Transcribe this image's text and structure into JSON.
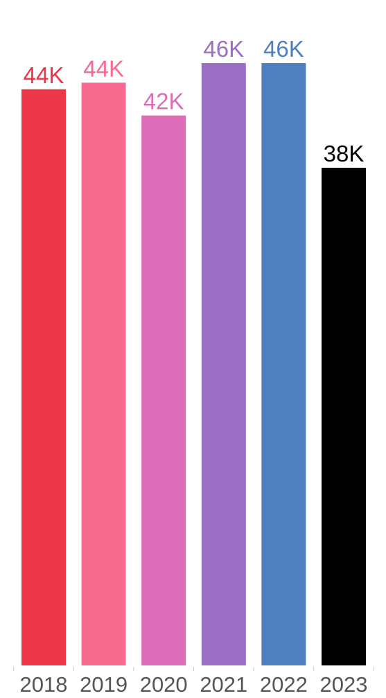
{
  "chart_data": {
    "type": "bar",
    "title": "",
    "xlabel": "",
    "ylabel": "",
    "categories": [
      "2018",
      "2019",
      "2020",
      "2021",
      "2022",
      "2023"
    ],
    "values": [
      44000,
      44500,
      42000,
      46000,
      46000,
      38000
    ],
    "data_labels": [
      "44K",
      "44K",
      "42K",
      "46K",
      "46K",
      "38K"
    ],
    "colors": [
      "#EB3749",
      "#F96A90",
      "#DD6DB8",
      "#9A6FC4",
      "#4F7FBE",
      "#000000"
    ],
    "label_colors": [
      "#EB3749",
      "#F96A90",
      "#DD6DB8",
      "#9A6FC4",
      "#4F7FBE",
      "#000000"
    ],
    "ylim": [
      0,
      46000
    ],
    "grid": false,
    "legend": "none"
  }
}
